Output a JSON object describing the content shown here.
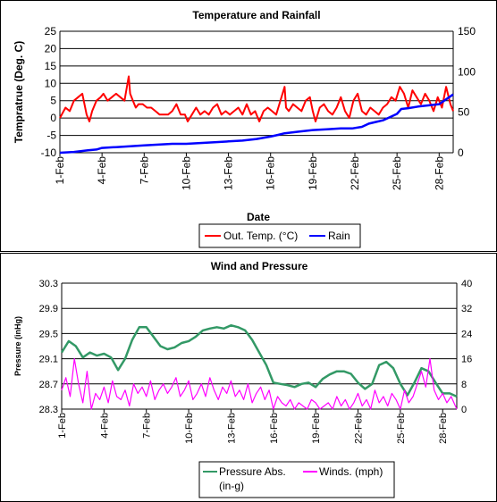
{
  "chart_data": [
    {
      "type": "line",
      "title": "Temperature and Rainfall",
      "xlabel": "Date",
      "ylabel": "Tempratrue (Deg. C)",
      "y2label": "",
      "x_ticks": [
        "1-Feb",
        "4-Feb",
        "7-Feb",
        "10-Feb",
        "13-Feb",
        "16-Feb",
        "19-Feb",
        "22-Feb",
        "25-Feb",
        "28-Feb"
      ],
      "ylim": [
        -10,
        25
      ],
      "yticks": [
        -10,
        -5,
        0,
        5,
        10,
        15,
        20,
        25
      ],
      "y2lim": [
        0,
        150
      ],
      "y2ticks": [
        0,
        50,
        100,
        150
      ],
      "grid": true,
      "legend_placement": "bottom",
      "series": [
        {
          "name": "Out. Temp. (°C)",
          "axis": "left",
          "color": "#ff0000",
          "x": [
            1.0,
            1.4,
            1.7,
            2.0,
            2.3,
            2.6,
            2.9,
            3.1,
            3.3,
            3.6,
            3.9,
            4.1,
            4.4,
            4.7,
            5.0,
            5.3,
            5.6,
            5.9,
            6.0,
            6.2,
            6.4,
            6.6,
            6.9,
            7.2,
            7.5,
            7.8,
            8.1,
            8.4,
            8.7,
            9.0,
            9.3,
            9.6,
            9.9,
            10.1,
            10.4,
            10.7,
            11.0,
            11.3,
            11.6,
            11.9,
            12.2,
            12.5,
            12.8,
            13.1,
            13.4,
            13.7,
            14.0,
            14.3,
            14.6,
            14.9,
            15.2,
            15.5,
            15.8,
            16.1,
            16.4,
            16.7,
            17.0,
            17.1,
            17.3,
            17.6,
            17.9,
            18.2,
            18.5,
            18.8,
            19.0,
            19.2,
            19.5,
            19.8,
            20.1,
            20.4,
            20.7,
            21.0,
            21.3,
            21.6,
            21.9,
            22.2,
            22.5,
            22.8,
            23.1,
            23.4,
            23.7,
            24.0,
            24.3,
            24.6,
            24.9,
            25.2,
            25.5,
            25.8,
            26.1,
            26.4,
            26.7,
            27.0,
            27.3,
            27.6,
            27.9,
            28.2,
            28.5,
            28.8,
            29.0
          ],
          "values": [
            0,
            3,
            2,
            5,
            6,
            7,
            1,
            -1,
            2,
            5,
            6,
            7,
            5,
            6,
            7,
            6,
            5,
            12,
            7,
            5,
            3,
            4,
            4,
            3,
            3,
            2,
            1,
            1,
            1,
            2,
            4,
            1,
            1,
            -1,
            1,
            3,
            1,
            2,
            1,
            3,
            4,
            1,
            2,
            1,
            2,
            3,
            1,
            4,
            1,
            2,
            -1,
            2,
            3,
            2,
            1,
            5,
            9,
            3,
            2,
            4,
            3,
            2,
            5,
            6,
            2,
            -1,
            3,
            4,
            2,
            1,
            3,
            6,
            2,
            0,
            5,
            7,
            2,
            1,
            3,
            2,
            1,
            3,
            4,
            6,
            5,
            9,
            7,
            3,
            8,
            6,
            4,
            7,
            5,
            2,
            6,
            3,
            9,
            4,
            2
          ]
        },
        {
          "name": "Rain",
          "axis": "right",
          "color": "#0000ff",
          "x": [
            1,
            2,
            3,
            3.6,
            4,
            5,
            6,
            7,
            8,
            9,
            10,
            11,
            12,
            13,
            14,
            15,
            16,
            16.5,
            17,
            18,
            19,
            20,
            21,
            21.8,
            22.5,
            23,
            23.5,
            24,
            24.5,
            25,
            25.3,
            25.8,
            26.5,
            27,
            28,
            28.5,
            29
          ],
          "values": [
            0,
            1,
            3,
            4,
            6,
            7,
            8,
            9,
            10,
            11,
            11,
            12,
            13,
            14,
            15,
            17,
            20,
            22,
            24,
            26,
            28,
            29,
            30,
            30,
            32,
            36,
            38,
            40,
            44,
            48,
            54,
            55,
            57,
            58,
            60,
            66,
            72
          ]
        }
      ]
    },
    {
      "type": "line",
      "title": "Wind and Pressure",
      "xlabel": "Date",
      "ylabel": "Pressure (inHg)",
      "x_ticks": [
        "1-Feb",
        "4-Feb",
        "7-Feb",
        "10-Feb",
        "13-Feb",
        "16-Feb",
        "19-Feb",
        "22-Feb",
        "25-Feb",
        "28-Feb"
      ],
      "ylim": [
        28.3,
        30.3
      ],
      "yticks": [
        "28.3",
        "28.7",
        "29.1",
        "29.5",
        "29.9",
        "30.3"
      ],
      "y2lim": [
        0,
        40
      ],
      "y2ticks": [
        "0",
        "8",
        "16",
        "24",
        "32",
        "40"
      ],
      "grid": true,
      "legend_placement": "bottom",
      "series": [
        {
          "name": "Pressure Abs. (in-g)",
          "axis": "left",
          "color": "#339966",
          "x": [
            1,
            1.5,
            2,
            2.5,
            3,
            3.5,
            4,
            4.5,
            5,
            5.5,
            6,
            6.5,
            7,
            7.5,
            8,
            8.5,
            9,
            9.5,
            10,
            10.5,
            11,
            11.5,
            12,
            12.5,
            13,
            13.5,
            14,
            14.5,
            15,
            15.5,
            16,
            16.5,
            17,
            17.5,
            18,
            18.5,
            19,
            19.5,
            20,
            20.5,
            21,
            21.5,
            22,
            22.5,
            23,
            23.5,
            24,
            24.5,
            25,
            25.5,
            26,
            26.5,
            27,
            27.5,
            28,
            28.5,
            29
          ],
          "values": [
            29.2,
            29.38,
            29.3,
            29.12,
            29.2,
            29.15,
            29.18,
            29.12,
            28.92,
            29.1,
            29.4,
            29.6,
            29.6,
            29.45,
            29.3,
            29.25,
            29.28,
            29.35,
            29.38,
            29.45,
            29.55,
            29.58,
            29.6,
            29.58,
            29.63,
            29.6,
            29.55,
            29.4,
            29.2,
            29.0,
            28.72,
            28.7,
            28.68,
            28.65,
            28.7,
            28.72,
            28.65,
            28.78,
            28.85,
            28.9,
            28.9,
            28.86,
            28.72,
            28.62,
            28.7,
            29.0,
            29.05,
            28.95,
            28.7,
            28.52,
            28.72,
            28.95,
            28.9,
            28.72,
            28.55,
            28.55,
            28.5
          ]
        },
        {
          "name": "Winds. (mph)",
          "axis": "right",
          "color": "#ff00ff",
          "x": [
            1,
            1.3,
            1.6,
            1.9,
            2.2,
            2.5,
            2.8,
            3.1,
            3.4,
            3.7,
            4.0,
            4.3,
            4.6,
            4.9,
            5.2,
            5.5,
            5.8,
            6.1,
            6.4,
            6.7,
            7.0,
            7.3,
            7.6,
            7.9,
            8.2,
            8.5,
            8.8,
            9.1,
            9.4,
            9.7,
            10.0,
            10.3,
            10.6,
            10.9,
            11.2,
            11.5,
            11.8,
            12.1,
            12.4,
            12.7,
            13.0,
            13.3,
            13.6,
            13.9,
            14.2,
            14.5,
            14.8,
            15.1,
            15.4,
            15.7,
            16.0,
            16.3,
            16.6,
            16.9,
            17.2,
            17.5,
            17.8,
            18.1,
            18.4,
            18.7,
            19.0,
            19.3,
            19.6,
            19.9,
            20.2,
            20.5,
            20.8,
            21.1,
            21.4,
            21.7,
            22.0,
            22.3,
            22.6,
            22.9,
            23.2,
            23.5,
            23.8,
            24.1,
            24.4,
            24.7,
            25.0,
            25.3,
            25.6,
            25.9,
            26.2,
            26.5,
            26.8,
            27.1,
            27.4,
            27.7,
            28.0,
            28.3,
            28.6,
            29.0
          ],
          "values": [
            6,
            10,
            4,
            16,
            8,
            2,
            12,
            0,
            5,
            3,
            7,
            2,
            9,
            4,
            3,
            6,
            1,
            8,
            5,
            7,
            4,
            9,
            3,
            6,
            8,
            5,
            7,
            10,
            4,
            6,
            9,
            3,
            5,
            8,
            4,
            10,
            6,
            3,
            7,
            5,
            9,
            4,
            6,
            3,
            8,
            2,
            5,
            7,
            3,
            6,
            0,
            4,
            2,
            1,
            3,
            0,
            2,
            1,
            0,
            3,
            2,
            0,
            1,
            2,
            0,
            4,
            1,
            3,
            0,
            2,
            5,
            1,
            3,
            0,
            6,
            2,
            4,
            1,
            5,
            3,
            0,
            6,
            2,
            4,
            8,
            12,
            7,
            16,
            6,
            3,
            5,
            2,
            4,
            0
          ]
        }
      ]
    }
  ],
  "legends": {
    "p1_temp": "Out. Temp. (°C)",
    "p1_rain": "Rain",
    "p2_pressure_1": "Pressure Abs.",
    "p2_pressure_2": "(in-g)",
    "p2_wind": "Winds. (mph)"
  }
}
